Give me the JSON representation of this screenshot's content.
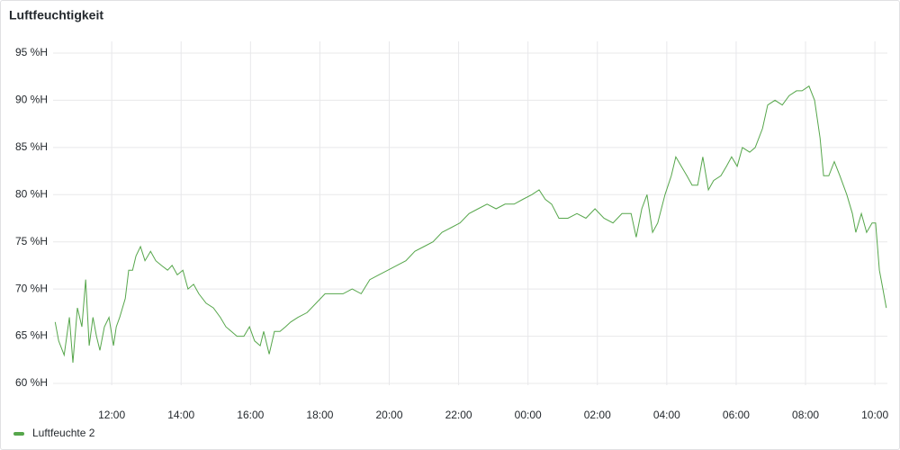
{
  "chart_data": {
    "type": "line",
    "title": "Luftfeuchtigkeit",
    "x": [
      10.37,
      10.47,
      10.63,
      10.78,
      10.88,
      11.01,
      11.14,
      11.25,
      11.35,
      11.46,
      11.56,
      11.66,
      11.79,
      11.92,
      12.05,
      12.13,
      12.23,
      12.39,
      12.49,
      12.6,
      12.7,
      12.83,
      12.96,
      13.12,
      13.27,
      13.43,
      13.61,
      13.74,
      13.89,
      14.05,
      14.2,
      14.36,
      14.51,
      14.72,
      14.93,
      15.13,
      15.29,
      15.45,
      15.61,
      15.81,
      15.97,
      16.12,
      16.28,
      16.38,
      16.54,
      16.69,
      16.85,
      17.01,
      17.16,
      17.37,
      17.63,
      17.89,
      18.15,
      18.41,
      18.67,
      18.93,
      19.19,
      19.44,
      19.7,
      19.96,
      20.22,
      20.48,
      20.74,
      21.0,
      21.26,
      21.52,
      21.78,
      22.04,
      22.3,
      22.56,
      22.82,
      23.08,
      23.34,
      23.6,
      23.85,
      24.11,
      24.32,
      24.5,
      24.68,
      24.89,
      25.15,
      25.41,
      25.67,
      25.93,
      26.19,
      26.45,
      26.71,
      26.97,
      27.12,
      27.28,
      27.43,
      27.59,
      27.74,
      27.95,
      28.13,
      28.26,
      28.42,
      28.58,
      28.73,
      28.89,
      29.04,
      29.2,
      29.35,
      29.56,
      29.72,
      29.87,
      30.03,
      30.18,
      30.39,
      30.55,
      30.76,
      30.91,
      31.12,
      31.33,
      31.53,
      31.74,
      31.9,
      32.1,
      32.26,
      32.42,
      32.52,
      32.67,
      32.83,
      32.99,
      33.19,
      33.35,
      33.45,
      33.61,
      33.76,
      33.92,
      34.02,
      34.13,
      34.23,
      34.33
    ],
    "series": [
      {
        "name": "Luftfeuchte 2",
        "color": "#56a64b",
        "values": [
          66.5,
          64.5,
          63,
          67,
          62.2,
          68,
          66,
          71,
          64,
          67,
          65,
          63.5,
          66,
          67,
          64,
          66,
          67,
          69,
          72,
          72,
          73.5,
          74.5,
          73,
          74,
          73,
          72.5,
          72,
          72.5,
          71.5,
          72,
          70,
          70.5,
          69.5,
          68.5,
          68,
          67,
          66,
          65.5,
          65,
          65,
          66,
          64.5,
          64,
          65.5,
          63.1,
          65.5,
          65.5,
          66,
          66.5,
          67,
          67.5,
          68.5,
          69.5,
          69.5,
          69.5,
          70,
          69.5,
          71,
          71.5,
          72,
          72.5,
          73,
          74,
          74.5,
          75,
          76,
          76.5,
          77,
          78,
          78.5,
          79,
          78.5,
          79,
          79,
          79.5,
          80,
          80.5,
          79.5,
          79,
          77.5,
          77.5,
          78,
          77.5,
          78.5,
          77.5,
          77,
          78,
          78,
          75.5,
          78.5,
          80,
          76,
          77,
          80,
          82,
          84,
          83,
          82,
          81,
          81,
          84,
          80.5,
          81.5,
          82,
          83,
          84,
          83,
          85,
          84.5,
          85,
          87,
          89.5,
          90,
          89.5,
          90.5,
          91,
          91,
          91.5,
          90,
          86,
          82,
          82,
          83.5,
          82,
          80,
          78,
          76,
          78,
          76,
          77,
          77,
          72,
          70,
          68
        ]
      }
    ],
    "xlim": [
      10.31,
      34.36
    ],
    "xticks": [
      {
        "value": 12,
        "label": "12:00"
      },
      {
        "value": 14,
        "label": "14:00"
      },
      {
        "value": 16,
        "label": "16:00"
      },
      {
        "value": 18,
        "label": "18:00"
      },
      {
        "value": 20,
        "label": "20:00"
      },
      {
        "value": 22,
        "label": "22:00"
      },
      {
        "value": 24,
        "label": "00:00"
      },
      {
        "value": 26,
        "label": "02:00"
      },
      {
        "value": 28,
        "label": "04:00"
      },
      {
        "value": 30,
        "label": "06:00"
      },
      {
        "value": 32,
        "label": "08:00"
      },
      {
        "value": 34,
        "label": "10:00"
      }
    ],
    "ylim": [
      60,
      95
    ],
    "yticks": [
      {
        "value": 60,
        "label": "60 %H"
      },
      {
        "value": 65,
        "label": "65 %H"
      },
      {
        "value": 70,
        "label": "70 %H"
      },
      {
        "value": 75,
        "label": "75 %H"
      },
      {
        "value": 80,
        "label": "80 %H"
      },
      {
        "value": 85,
        "label": "85 %H"
      },
      {
        "value": 90,
        "label": "90 %H"
      },
      {
        "value": 95,
        "label": "95 %H"
      }
    ],
    "grid": true,
    "legend": "bottom-left"
  }
}
